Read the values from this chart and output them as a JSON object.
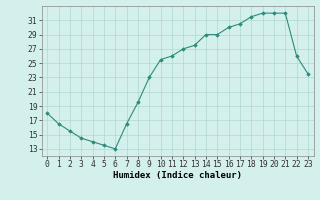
{
  "x": [
    0,
    1,
    2,
    3,
    4,
    5,
    6,
    7,
    8,
    9,
    10,
    11,
    12,
    13,
    14,
    15,
    16,
    17,
    18,
    19,
    20,
    21,
    22,
    23
  ],
  "y": [
    18,
    16.5,
    15.5,
    14.5,
    14,
    13.5,
    13,
    16.5,
    19.5,
    23,
    25.5,
    26,
    27,
    27.5,
    29,
    29,
    30,
    30.5,
    31.5,
    32,
    32,
    32,
    26,
    23.5
  ],
  "line_color": "#2e8b7a",
  "marker_color": "#2e8b7a",
  "bg_color": "#d4f0ed",
  "grid_color": "#afd8d2",
  "xlabel": "Humidex (Indice chaleur)",
  "xlim": [
    -0.5,
    23.5
  ],
  "ylim": [
    12,
    33
  ],
  "yticks": [
    13,
    15,
    17,
    19,
    21,
    23,
    25,
    27,
    29,
    31
  ],
  "xtick_labels": [
    "0",
    "1",
    "2",
    "3",
    "4",
    "5",
    "6",
    "7",
    "8",
    "9",
    "10",
    "11",
    "12",
    "13",
    "14",
    "15",
    "16",
    "17",
    "18",
    "19",
    "20",
    "21",
    "22",
    "23"
  ],
  "xlabel_fontsize": 6.5,
  "tick_fontsize": 5.8
}
